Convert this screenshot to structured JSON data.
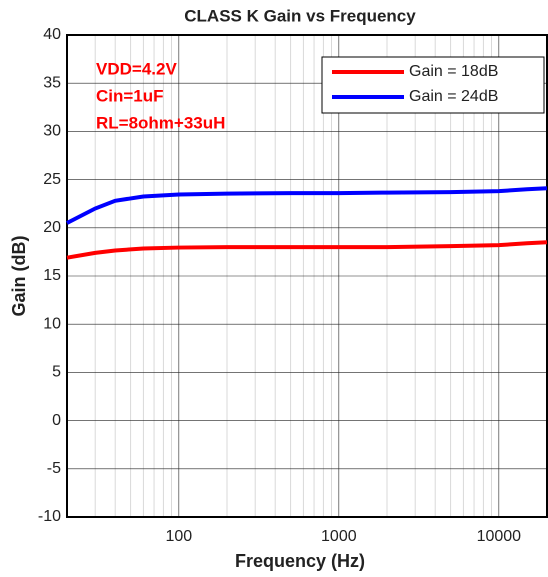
{
  "chart_data": {
    "type": "line",
    "title": "CLASS K Gain vs Frequency",
    "xlabel": "Frequency (Hz)",
    "ylabel": "Gain (dB)",
    "annotations": [
      "VDD=4.2V",
      "Cin=1uF",
      "RL=8ohm+33uH"
    ],
    "annotation_color": "#ff0000",
    "xscale": "log",
    "xlim": [
      20,
      20000
    ],
    "ylim": [
      -10,
      40
    ],
    "xticks": [
      100,
      1000,
      10000
    ],
    "yticks": [
      -10,
      -5,
      0,
      5,
      10,
      15,
      20,
      25,
      30,
      35,
      40
    ],
    "grid": true,
    "legend": "northeast",
    "series": [
      {
        "name": "Gain = 18dB",
        "color": "#ff0000",
        "x": [
          20,
          30,
          40,
          60,
          100,
          200,
          500,
          1000,
          2000,
          5000,
          10000,
          15000,
          20000
        ],
        "values": [
          16.9,
          17.4,
          17.65,
          17.85,
          17.95,
          18.0,
          18.0,
          18.0,
          18.0,
          18.1,
          18.2,
          18.4,
          18.5
        ]
      },
      {
        "name": "Gain = 24dB",
        "color": "#0000ff",
        "x": [
          20,
          30,
          40,
          60,
          100,
          200,
          500,
          1000,
          2000,
          5000,
          10000,
          15000,
          20000
        ],
        "values": [
          20.5,
          22.0,
          22.8,
          23.25,
          23.45,
          23.55,
          23.6,
          23.6,
          23.65,
          23.7,
          23.8,
          24.0,
          24.1
        ]
      }
    ]
  }
}
